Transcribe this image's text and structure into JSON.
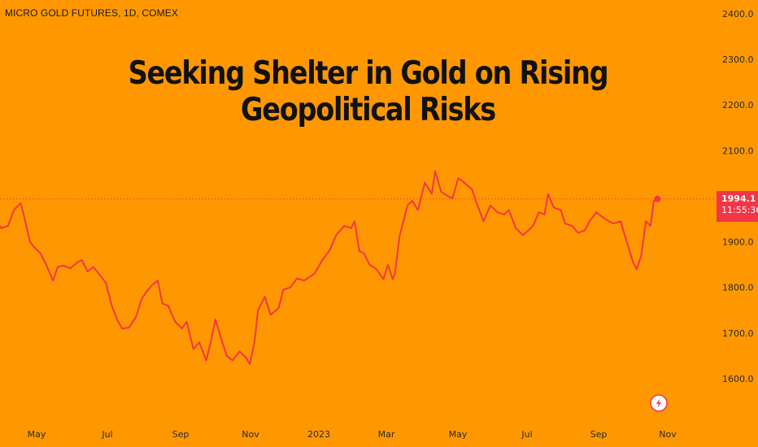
{
  "header": {
    "symbol": "MICRO GOLD FUTURES, 1D, COMEX",
    "headline": "Seeking Shelter in Gold on Rising Geopolitical Risks"
  },
  "badge": {
    "price": "1994.1",
    "time": "11:55:36"
  },
  "colors": {
    "background": "#FF9800",
    "line": "#F23645",
    "text": "#111111"
  },
  "chart_data": {
    "type": "line",
    "title": "Seeking Shelter in Gold on Rising Geopolitical Risks",
    "xlabel": "",
    "ylabel": "",
    "ylim": [
      1550,
      2420
    ],
    "y_ticks": [
      1600,
      1700,
      1800,
      1900,
      2000,
      2100,
      2200,
      2300,
      2400
    ],
    "y_tick_labels": [
      "1600.0",
      "1700.0",
      "1800.0",
      "1900.0",
      "2000.0",
      "2100.0",
      "2200.0",
      "2300.0",
      "2400.0"
    ],
    "x_ticks": [
      "May",
      "Jul",
      "Sep",
      "Nov",
      "2023",
      "Mar",
      "May",
      "Jul",
      "Sep",
      "Nov"
    ],
    "last_price": 1994.1,
    "last_price_line": "dotted",
    "grid": false,
    "series": [
      {
        "values": [
          [
            "2022-03-28",
            1945
          ],
          [
            "2022-04-01",
            1930
          ],
          [
            "2022-04-07",
            1935
          ],
          [
            "2022-04-12",
            1970
          ],
          [
            "2022-04-18",
            1985
          ],
          [
            "2022-04-21",
            1955
          ],
          [
            "2022-04-26",
            1900
          ],
          [
            "2022-04-29",
            1890
          ],
          [
            "2022-05-05",
            1875
          ],
          [
            "2022-05-10",
            1850
          ],
          [
            "2022-05-16",
            1815
          ],
          [
            "2022-05-20",
            1845
          ],
          [
            "2022-05-25",
            1848
          ],
          [
            "2022-05-31",
            1842
          ],
          [
            "2022-06-06",
            1855
          ],
          [
            "2022-06-10",
            1860
          ],
          [
            "2022-06-15",
            1835
          ],
          [
            "2022-06-20",
            1845
          ],
          [
            "2022-06-27",
            1823
          ],
          [
            "2022-07-01",
            1810
          ],
          [
            "2022-07-06",
            1760
          ],
          [
            "2022-07-11",
            1728
          ],
          [
            "2022-07-15",
            1710
          ],
          [
            "2022-07-21",
            1712
          ],
          [
            "2022-07-27",
            1735
          ],
          [
            "2022-08-01",
            1775
          ],
          [
            "2022-08-05",
            1790
          ],
          [
            "2022-08-10",
            1805
          ],
          [
            "2022-08-15",
            1815
          ],
          [
            "2022-08-19",
            1765
          ],
          [
            "2022-08-24",
            1760
          ],
          [
            "2022-08-30",
            1725
          ],
          [
            "2022-09-05",
            1710
          ],
          [
            "2022-09-09",
            1725
          ],
          [
            "2022-09-15",
            1665
          ],
          [
            "2022-09-20",
            1680
          ],
          [
            "2022-09-26",
            1640
          ],
          [
            "2022-09-30",
            1680
          ],
          [
            "2022-10-04",
            1730
          ],
          [
            "2022-10-10",
            1680
          ],
          [
            "2022-10-14",
            1650
          ],
          [
            "2022-10-19",
            1640
          ],
          [
            "2022-10-25",
            1660
          ],
          [
            "2022-10-31",
            1645
          ],
          [
            "2022-11-03",
            1632
          ],
          [
            "2022-11-07",
            1680
          ],
          [
            "2022-11-10",
            1750
          ],
          [
            "2022-11-16",
            1780
          ],
          [
            "2022-11-21",
            1740
          ],
          [
            "2022-11-28",
            1755
          ],
          [
            "2022-12-02",
            1795
          ],
          [
            "2022-12-08",
            1800
          ],
          [
            "2022-12-14",
            1820
          ],
          [
            "2022-12-20",
            1815
          ],
          [
            "2022-12-29",
            1830
          ],
          [
            "2023-01-05",
            1860
          ],
          [
            "2023-01-11",
            1880
          ],
          [
            "2023-01-17",
            1915
          ],
          [
            "2023-01-24",
            1935
          ],
          [
            "2023-01-30",
            1930
          ],
          [
            "2023-02-02",
            1945
          ],
          [
            "2023-02-06",
            1880
          ],
          [
            "2023-02-10",
            1875
          ],
          [
            "2023-02-15",
            1850
          ],
          [
            "2023-02-21",
            1840
          ],
          [
            "2023-02-27",
            1818
          ],
          [
            "2023-03-03",
            1850
          ],
          [
            "2023-03-07",
            1818
          ],
          [
            "2023-03-09",
            1830
          ],
          [
            "2023-03-13",
            1912
          ],
          [
            "2023-03-20",
            1980
          ],
          [
            "2023-03-24",
            1990
          ],
          [
            "2023-03-29",
            1970
          ],
          [
            "2023-04-04",
            2030
          ],
          [
            "2023-04-10",
            2005
          ],
          [
            "2023-04-13",
            2055
          ],
          [
            "2023-04-18",
            2010
          ],
          [
            "2023-04-24",
            2000
          ],
          [
            "2023-04-28",
            1995
          ],
          [
            "2023-05-03",
            2040
          ],
          [
            "2023-05-08",
            2030
          ],
          [
            "2023-05-15",
            2015
          ],
          [
            "2023-05-19",
            1985
          ],
          [
            "2023-05-25",
            1945
          ],
          [
            "2023-05-31",
            1980
          ],
          [
            "2023-06-06",
            1965
          ],
          [
            "2023-06-12",
            1960
          ],
          [
            "2023-06-16",
            1970
          ],
          [
            "2023-06-22",
            1930
          ],
          [
            "2023-06-28",
            1915
          ],
          [
            "2023-07-03",
            1925
          ],
          [
            "2023-07-07",
            1935
          ],
          [
            "2023-07-12",
            1965
          ],
          [
            "2023-07-17",
            1960
          ],
          [
            "2023-07-20",
            2005
          ],
          [
            "2023-07-25",
            1975
          ],
          [
            "2023-07-31",
            1970
          ],
          [
            "2023-08-04",
            1940
          ],
          [
            "2023-08-10",
            1935
          ],
          [
            "2023-08-15",
            1920
          ],
          [
            "2023-08-21",
            1925
          ],
          [
            "2023-08-25",
            1945
          ],
          [
            "2023-08-31",
            1965
          ],
          [
            "2023-09-05",
            1955
          ],
          [
            "2023-09-11",
            1945
          ],
          [
            "2023-09-15",
            1940
          ],
          [
            "2023-09-21",
            1945
          ],
          [
            "2023-09-27",
            1895
          ],
          [
            "2023-10-02",
            1855
          ],
          [
            "2023-10-05",
            1840
          ],
          [
            "2023-10-09",
            1870
          ],
          [
            "2023-10-13",
            1945
          ],
          [
            "2023-10-17",
            1935
          ],
          [
            "2023-10-20",
            1990
          ],
          [
            "2023-10-23",
            1994.1
          ]
        ]
      }
    ]
  },
  "footer": {
    "logo": "lightning-logo"
  }
}
